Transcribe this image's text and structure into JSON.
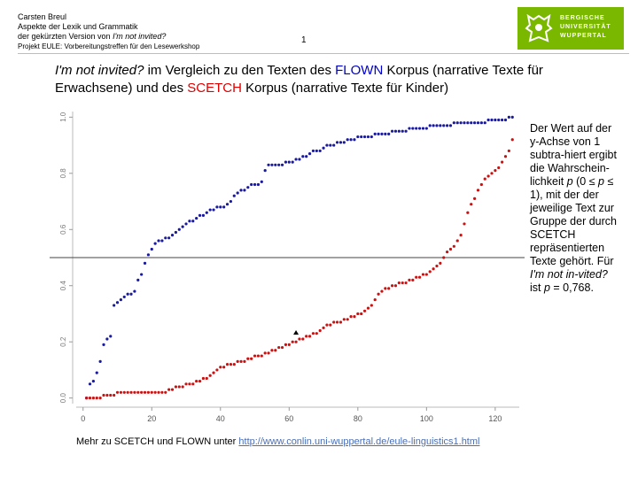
{
  "header": {
    "author": "Carsten Breul",
    "line2": "Aspekte der Lexik und Grammatik",
    "line3_prefix": "der gekürzten Version von ",
    "line3_title": "I'm not invited?",
    "project": "Projekt EULE: Vorbereitungstreffen für den Lesewerkshop",
    "page_number": "1"
  },
  "logo": {
    "line1": "BERGISCHE",
    "line2": "UNIVERSITÄT",
    "line3": "WUPPERTAL",
    "color": "#7ab800"
  },
  "title": {
    "part1": "I'm not invited?",
    "part2": " im Vergleich zu den Texten des ",
    "flown": "FLOWN",
    "part3": " Korpus (narrative Texte für Erwachsene) und des ",
    "scetch": "SCETCH",
    "part4": " Korpus (narrative Texte für Kinder)"
  },
  "note": {
    "text1": "Der Wert auf der y-Achse von 1 subtra-hiert ergibt die Wahrschein-lichkeit ",
    "p1": "p",
    "text2": " (0 ≤ ",
    "p2": "p",
    "text3": " ≤ 1), mit der der jeweilige Text zur Gruppe der durch SCETCH repräsentierten Texte gehört. Für ",
    "title": "I'm not in-vited?",
    "text4": " ist ",
    "p3": "p",
    "text5": " = 0,768."
  },
  "footer": {
    "text": "Mehr zu SCETCH und FLOWN unter ",
    "link": "http://www.conlin.uni-wuppertal.de/eule-linguistics1.html"
  },
  "chart_data": {
    "type": "scatter",
    "title": "",
    "xlabel": "",
    "ylabel": "",
    "x_ticks": [
      0,
      20,
      40,
      60,
      80,
      100,
      120
    ],
    "y_ticks": [
      "0.0",
      "0.2",
      "0.4",
      "0.6",
      "0.8",
      "1.0"
    ],
    "xlim": [
      -2,
      127
    ],
    "ylim": [
      -0.02,
      1.02
    ],
    "hline": 0.5,
    "grid": false,
    "series": [
      {
        "color": "#1a1aa0",
        "x": [
          1,
          2,
          3,
          4,
          5,
          6,
          7,
          8,
          9,
          10,
          11,
          12,
          13,
          14,
          15,
          16,
          17,
          18,
          19,
          20,
          21,
          22,
          23,
          24,
          25,
          26,
          27,
          28,
          29,
          30,
          31,
          32,
          33,
          34,
          35,
          36,
          37,
          38,
          39,
          40,
          41,
          42,
          43,
          44,
          45,
          46,
          47,
          48,
          49,
          50,
          51,
          52,
          53,
          54,
          55,
          56,
          57,
          58,
          59,
          60,
          61,
          62,
          63,
          64,
          65,
          66,
          67,
          68,
          69,
          70,
          71,
          72,
          73,
          74,
          75,
          76,
          77,
          78,
          79,
          80,
          81,
          82,
          83,
          84,
          85,
          86,
          87,
          88,
          89,
          90,
          91,
          92,
          93,
          94,
          95,
          96,
          97,
          98,
          99,
          100,
          101,
          102,
          103,
          104,
          105,
          106,
          107,
          108,
          109,
          110,
          111,
          112,
          113,
          114,
          115,
          116,
          117,
          118,
          119,
          120,
          121,
          122,
          123,
          124,
          125
        ],
        "y": [
          0.0,
          0.05,
          0.06,
          0.09,
          0.13,
          0.19,
          0.21,
          0.22,
          0.33,
          0.34,
          0.35,
          0.36,
          0.37,
          0.37,
          0.38,
          0.42,
          0.44,
          0.48,
          0.51,
          0.53,
          0.55,
          0.56,
          0.56,
          0.57,
          0.57,
          0.58,
          0.59,
          0.6,
          0.61,
          0.62,
          0.63,
          0.63,
          0.64,
          0.65,
          0.65,
          0.66,
          0.67,
          0.67,
          0.68,
          0.68,
          0.68,
          0.69,
          0.7,
          0.72,
          0.73,
          0.74,
          0.74,
          0.75,
          0.76,
          0.76,
          0.76,
          0.77,
          0.81,
          0.83,
          0.83,
          0.83,
          0.83,
          0.83,
          0.84,
          0.84,
          0.84,
          0.85,
          0.85,
          0.86,
          0.86,
          0.87,
          0.88,
          0.88,
          0.88,
          0.89,
          0.9,
          0.9,
          0.9,
          0.91,
          0.91,
          0.91,
          0.92,
          0.92,
          0.92,
          0.93,
          0.93,
          0.93,
          0.93,
          0.93,
          0.94,
          0.94,
          0.94,
          0.94,
          0.94,
          0.95,
          0.95,
          0.95,
          0.95,
          0.95,
          0.96,
          0.96,
          0.96,
          0.96,
          0.96,
          0.96,
          0.97,
          0.97,
          0.97,
          0.97,
          0.97,
          0.97,
          0.97,
          0.98,
          0.98,
          0.98,
          0.98,
          0.98,
          0.98,
          0.98,
          0.98,
          0.98,
          0.98,
          0.99,
          0.99,
          0.99,
          0.99,
          0.99,
          0.99,
          1.0,
          1.0
        ]
      },
      {
        "color": "#cc1111",
        "x": [
          1,
          2,
          3,
          4,
          5,
          6,
          7,
          8,
          9,
          10,
          11,
          12,
          13,
          14,
          15,
          16,
          17,
          18,
          19,
          20,
          21,
          22,
          23,
          24,
          25,
          26,
          27,
          28,
          29,
          30,
          31,
          32,
          33,
          34,
          35,
          36,
          37,
          38,
          39,
          40,
          41,
          42,
          43,
          44,
          45,
          46,
          47,
          48,
          49,
          50,
          51,
          52,
          53,
          54,
          55,
          56,
          57,
          58,
          59,
          60,
          61,
          62,
          63,
          64,
          65,
          66,
          67,
          68,
          69,
          70,
          71,
          72,
          73,
          74,
          75,
          76,
          77,
          78,
          79,
          80,
          81,
          82,
          83,
          84,
          85,
          86,
          87,
          88,
          89,
          90,
          91,
          92,
          93,
          94,
          95,
          96,
          97,
          98,
          99,
          100,
          101,
          102,
          103,
          104,
          105,
          106,
          107,
          108,
          109,
          110,
          111,
          112,
          113,
          114,
          115,
          116,
          117,
          118,
          119,
          120,
          121,
          122,
          123,
          124,
          125
        ],
        "y": [
          0.0,
          0.0,
          0.0,
          0.0,
          0.0,
          0.01,
          0.01,
          0.01,
          0.01,
          0.02,
          0.02,
          0.02,
          0.02,
          0.02,
          0.02,
          0.02,
          0.02,
          0.02,
          0.02,
          0.02,
          0.02,
          0.02,
          0.02,
          0.02,
          0.03,
          0.03,
          0.04,
          0.04,
          0.04,
          0.05,
          0.05,
          0.05,
          0.06,
          0.06,
          0.07,
          0.07,
          0.08,
          0.09,
          0.1,
          0.11,
          0.11,
          0.12,
          0.12,
          0.12,
          0.13,
          0.13,
          0.13,
          0.14,
          0.14,
          0.15,
          0.15,
          0.15,
          0.16,
          0.16,
          0.17,
          0.17,
          0.18,
          0.18,
          0.19,
          0.19,
          0.2,
          0.2,
          0.21,
          0.21,
          0.22,
          0.22,
          0.23,
          0.23,
          0.24,
          0.25,
          0.26,
          0.26,
          0.27,
          0.27,
          0.27,
          0.28,
          0.28,
          0.29,
          0.29,
          0.3,
          0.3,
          0.31,
          0.32,
          0.33,
          0.35,
          0.37,
          0.38,
          0.39,
          0.39,
          0.4,
          0.4,
          0.41,
          0.41,
          0.41,
          0.42,
          0.42,
          0.43,
          0.43,
          0.44,
          0.44,
          0.45,
          0.46,
          0.47,
          0.48,
          0.5,
          0.52,
          0.53,
          0.54,
          0.56,
          0.58,
          0.62,
          0.66,
          0.69,
          0.71,
          0.74,
          0.76,
          0.78,
          0.79,
          0.8,
          0.81,
          0.82,
          0.84,
          0.86,
          0.88,
          0.92
        ]
      }
    ],
    "highlight_point": {
      "x": 62,
      "y": 0.232,
      "color": "#000000"
    }
  }
}
